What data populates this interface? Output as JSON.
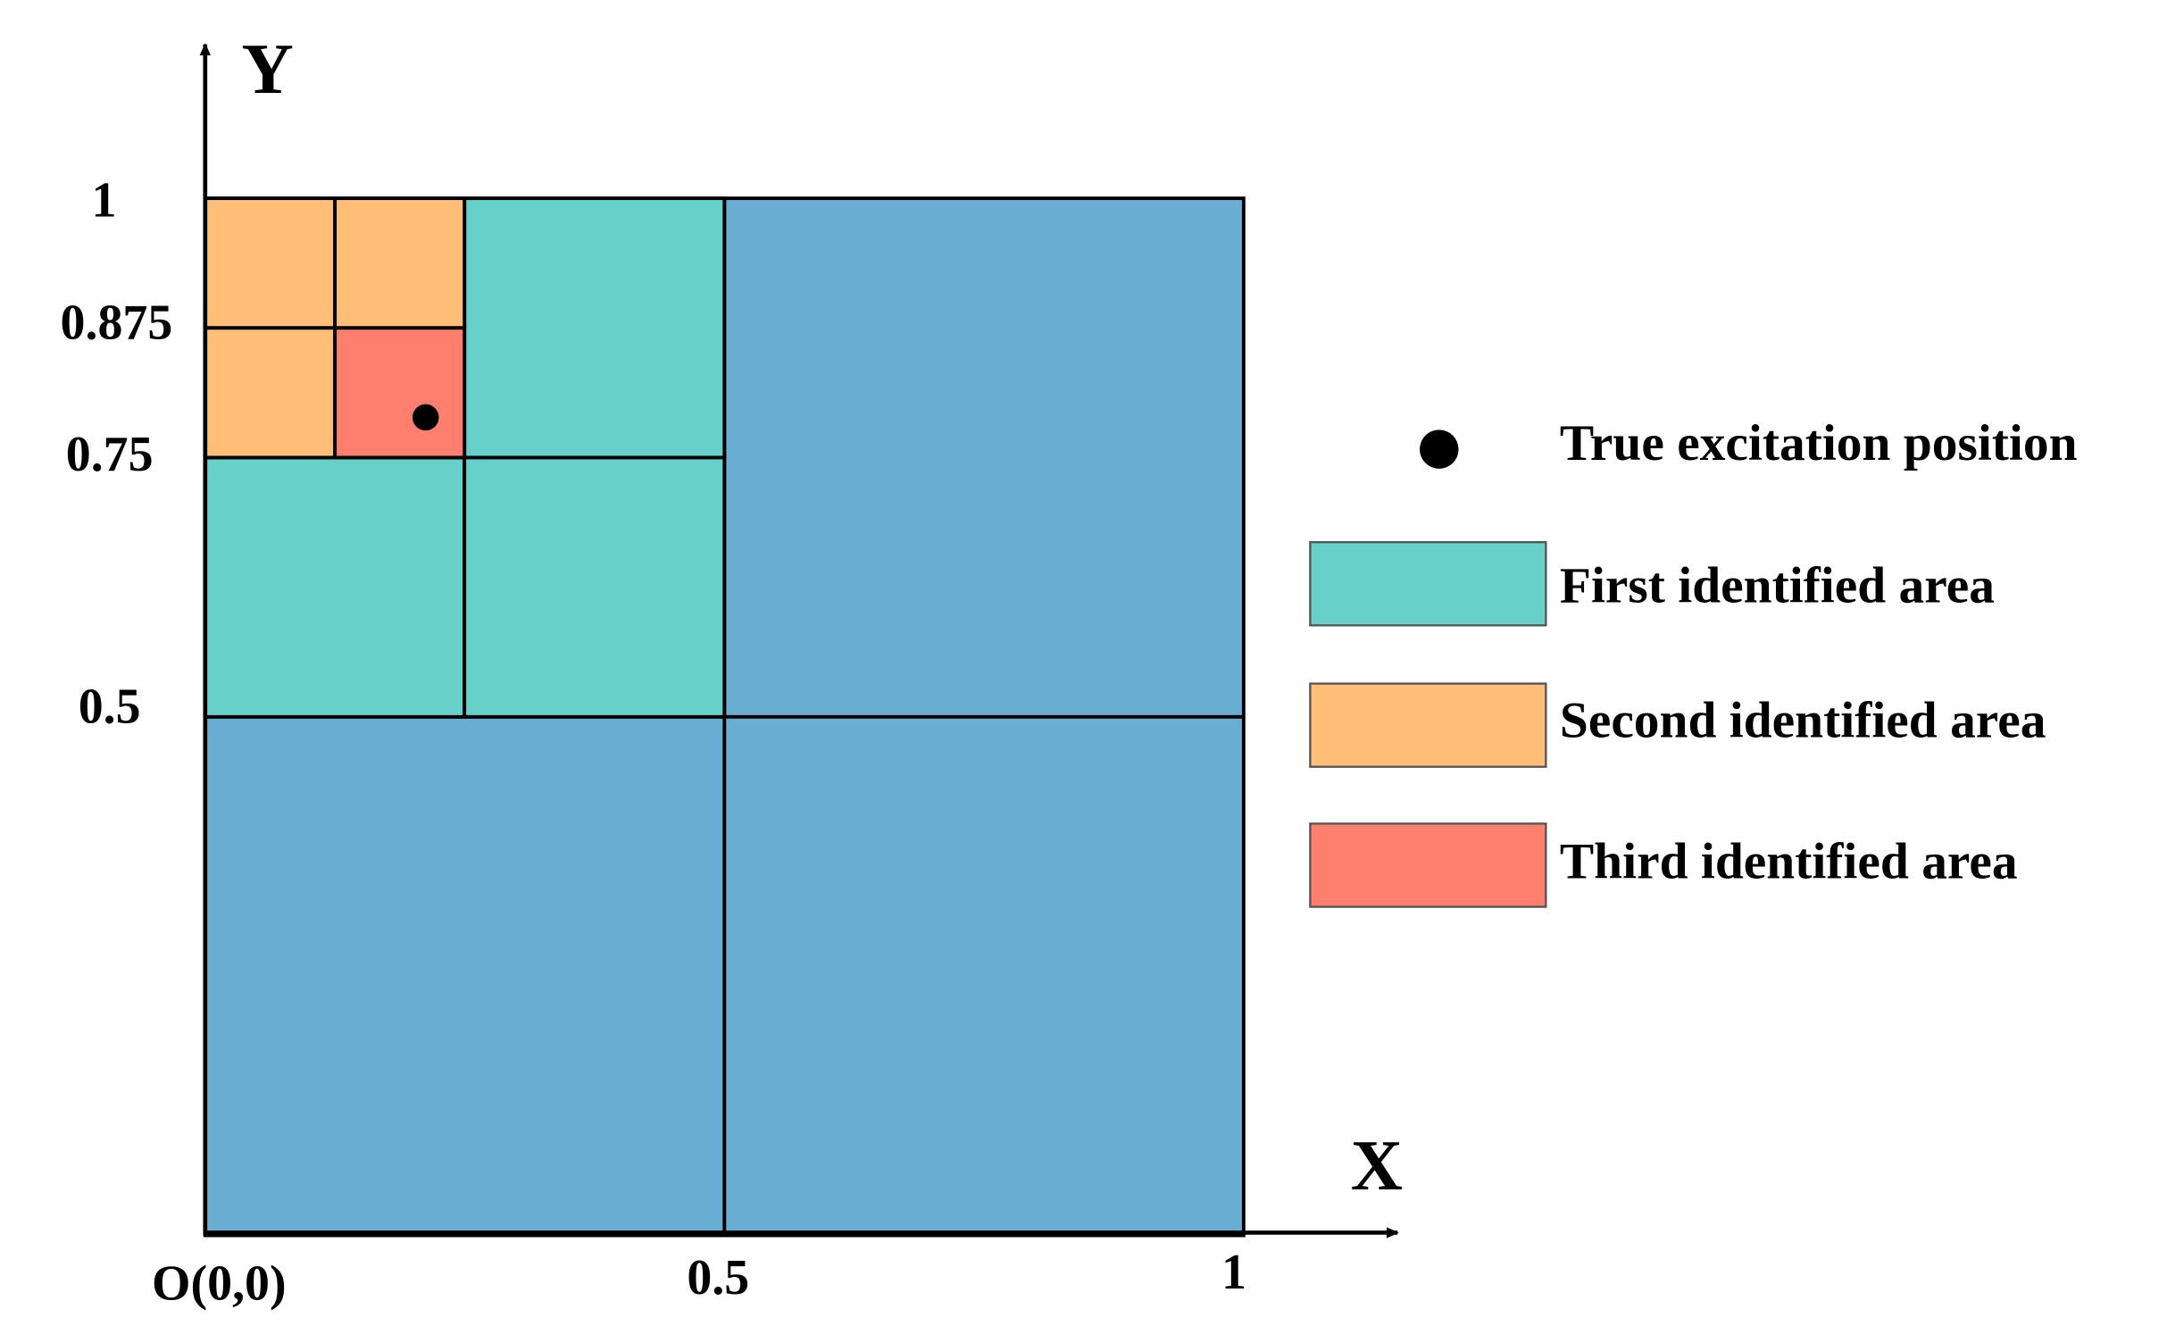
{
  "axes": {
    "x_label": "X",
    "y_label": "Y",
    "origin_label": "O(0,0)",
    "x_ticks": [
      "0.5",
      "1"
    ],
    "y_ticks": [
      "1",
      "0.875",
      "0.75",
      "0.5"
    ]
  },
  "legend": [
    "True excitation position",
    "First identified area",
    "Second identified area",
    "Third identified area"
  ]
}
